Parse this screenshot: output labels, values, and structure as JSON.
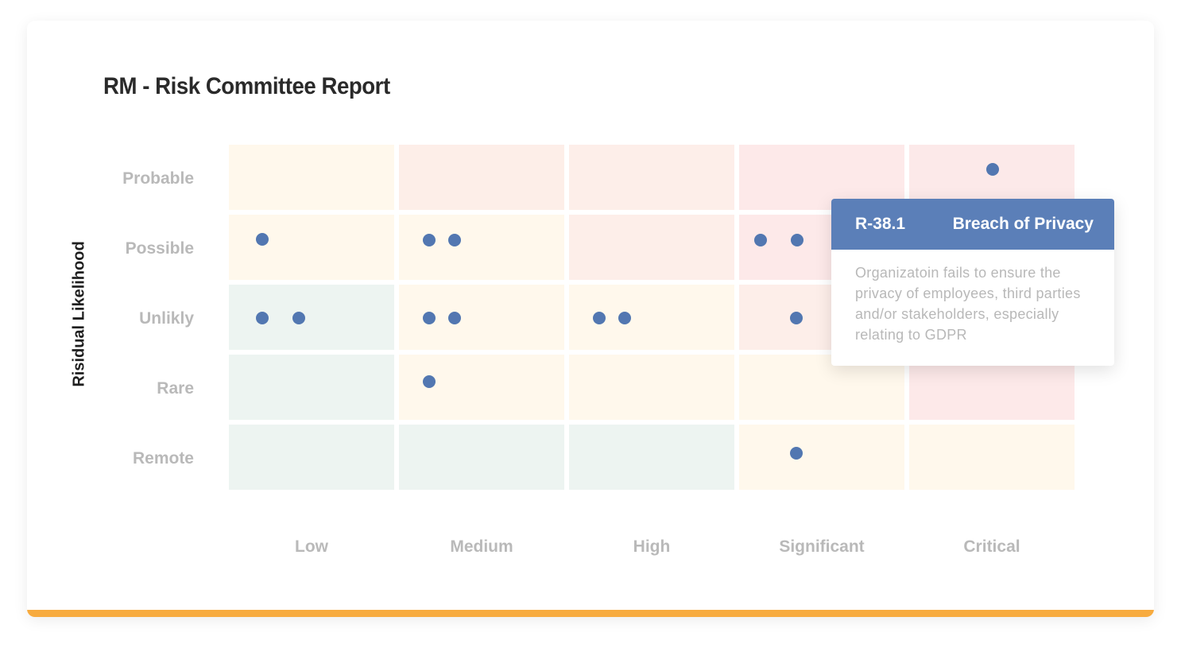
{
  "report": {
    "title": "RM - Risk Committee Report"
  },
  "chart_data": {
    "type": "heatmap",
    "title": "RM - Risk Committee Report",
    "ylabel": "Risidual Likelihood",
    "xlabel": "",
    "y_categories": [
      "Probable",
      "Possible",
      "Unlikly",
      "Rare",
      "Remote"
    ],
    "x_categories": [
      "Low",
      "Medium",
      "High",
      "Significant",
      "Critical"
    ],
    "cell_colors": [
      [
        "#fff8ec",
        "#fdeee8",
        "#fdeee9",
        "#fde9e9",
        "#fce9e9"
      ],
      [
        "#fff8ec",
        "#fff8ec",
        "#fdeee9",
        "#fde9e9",
        "#fde9e9"
      ],
      [
        "#edf4f1",
        "#fff8ec",
        "#fff8ec",
        "#fdeee9",
        "#fde9e9"
      ],
      [
        "#edf4f1",
        "#fff8ec",
        "#fff8ec",
        "#fff8ec",
        "#fde9e9"
      ],
      [
        "#edf4f1",
        "#edf4f1",
        "#edf4f1",
        "#fff8ec",
        "#fff8ec"
      ]
    ],
    "risk_counts": [
      [
        0,
        0,
        0,
        0,
        1
      ],
      [
        1,
        2,
        0,
        2,
        0
      ],
      [
        2,
        2,
        2,
        1,
        0
      ],
      [
        0,
        1,
        0,
        0,
        0
      ],
      [
        0,
        0,
        0,
        1,
        0
      ]
    ],
    "dot_color": "#5277b1",
    "grid": false
  },
  "tooltip": {
    "id": "R-38.1",
    "name": "Breach of Privacy",
    "description": "Organizatoin fails to ensure the privacy of employees, third parties and/or stakeholders, especially relating to GDPR"
  },
  "colors": {
    "accent": "#f7ab3f",
    "tooltip_header": "#5b7fb8"
  }
}
